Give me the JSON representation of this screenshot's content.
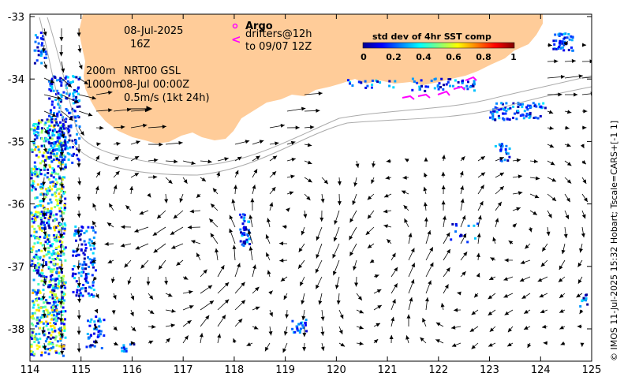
{
  "map": {
    "date_label": "08-Jul-2025",
    "time_label": "16Z",
    "argo_label": "Argo",
    "drifters_label": "drifters@12h",
    "drifters_to_label": "to 09/07 12Z",
    "isobath_200": "200m",
    "isobath_1000": "1000m",
    "product_label": "NRT00 GSL",
    "product_time_label": "08-Jul 00:00Z",
    "scale_label": "0.5m/s (1kt 24h)",
    "credit": "© IMOS 11-Jul-2025 15:32 Hobart; Tscale=CARS+[-1 1]",
    "colorbar": {
      "title": "std dev of 4hr SST comp",
      "ticks": [
        "0",
        "0.2",
        "0.4",
        "0.6",
        "0.8",
        "1"
      ]
    },
    "axes": {
      "lon_ticks": [
        "114",
        "115",
        "116",
        "117",
        "118",
        "119",
        "120",
        "121",
        "122",
        "123",
        "124",
        "125"
      ],
      "lat_ticks": [
        "-33",
        "-34",
        "-35",
        "-36",
        "-37",
        "-38"
      ]
    },
    "colors": {
      "land": "#FFCC99",
      "argo": "#FF00FF",
      "drifter": "#FF00FF",
      "isobath": "#AAAAAA"
    }
  }
}
